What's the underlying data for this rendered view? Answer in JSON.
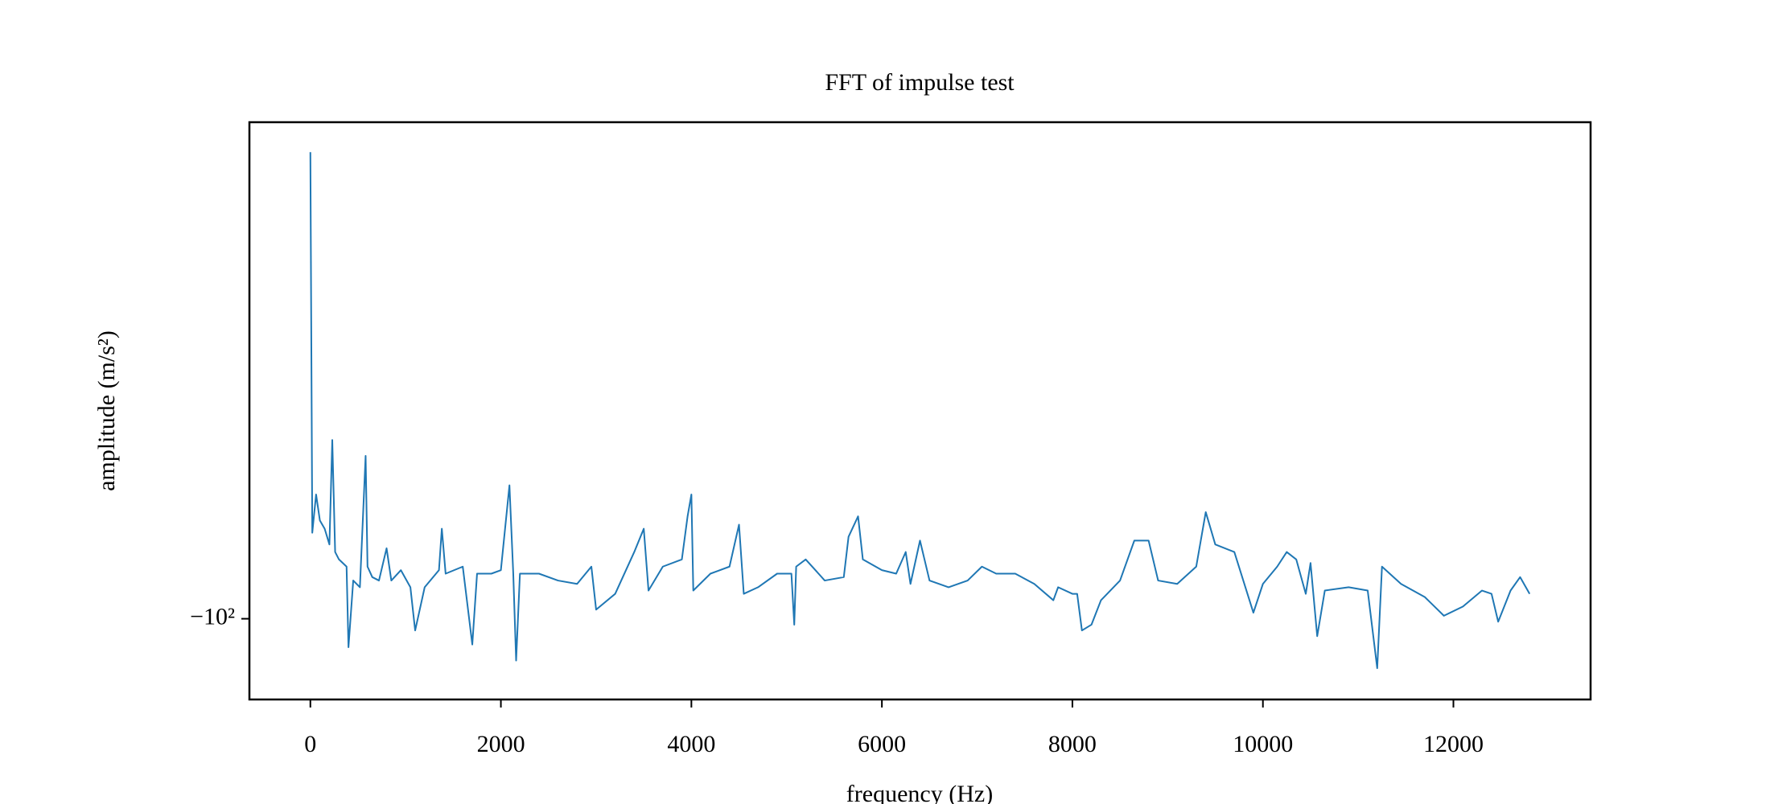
{
  "chart_data": {
    "type": "line",
    "title": "FFT of impulse test",
    "x_label": "frequency (Hz)",
    "y_label": "amplitude (m/s²)",
    "yscale": "symlog",
    "color": "#1f77b4",
    "xlim": [
      -640,
      13440
    ],
    "ylim": [
      -131,
      -19
    ],
    "xticks": [
      0,
      2000,
      4000,
      6000,
      8000,
      10000,
      12000
    ],
    "yticks": [
      {
        "value": -100,
        "label": "−10²"
      }
    ],
    "x": [
      0,
      20,
      60,
      100,
      150,
      200,
      230,
      260,
      300,
      380,
      400,
      450,
      520,
      580,
      600,
      650,
      720,
      800,
      850,
      950,
      1050,
      1100,
      1200,
      1350,
      1380,
      1420,
      1600,
      1700,
      1750,
      1900,
      2000,
      2090,
      2130,
      2160,
      2200,
      2400,
      2600,
      2800,
      2950,
      3000,
      3200,
      3400,
      3500,
      3550,
      3700,
      3900,
      3960,
      4000,
      4020,
      4200,
      4400,
      4500,
      4550,
      4700,
      4900,
      5050,
      5080,
      5100,
      5200,
      5400,
      5600,
      5650,
      5750,
      5800,
      6000,
      6150,
      6250,
      6300,
      6400,
      6500,
      6700,
      6900,
      7050,
      7200,
      7400,
      7600,
      7800,
      7850,
      8000,
      8050,
      8100,
      8200,
      8300,
      8500,
      8650,
      8800,
      8900,
      9100,
      9300,
      9400,
      9500,
      9700,
      9900,
      10000,
      10150,
      10250,
      10350,
      10450,
      10500,
      10570,
      10650,
      10900,
      11100,
      11200,
      11250,
      11450,
      11700,
      11900,
      12100,
      12300,
      12400,
      12470,
      12600,
      12700,
      12800
    ],
    "values": [
      -21,
      -75,
      -66,
      -72,
      -74,
      -78,
      -55,
      -80,
      -82,
      -84,
      -110,
      -88,
      -90,
      -58,
      -84,
      -87,
      -88,
      -79,
      -88,
      -85,
      -90,
      -104,
      -90,
      -85,
      -74,
      -86,
      -84,
      -109,
      -86,
      -86,
      -85,
      -64,
      -86,
      -115,
      -86,
      -86,
      -88,
      -89,
      -84,
      -97,
      -92,
      -80,
      -74,
      -91,
      -84,
      -82,
      -71,
      -66,
      -91,
      -86,
      -84,
      -73,
      -92,
      -90,
      -86,
      -86,
      -102,
      -84,
      -82,
      -88,
      -87,
      -76,
      -71,
      -82,
      -85,
      -86,
      -80,
      -89,
      -77,
      -88,
      -90,
      -88,
      -84,
      -86,
      -86,
      -89,
      -94,
      -90,
      -92,
      -92,
      -104,
      -102,
      -94,
      -88,
      -77,
      -77,
      -88,
      -89,
      -84,
      -70,
      -78,
      -80,
      -98,
      -89,
      -84,
      -80,
      -82,
      -92,
      -83,
      -106,
      -91,
      -90,
      -91,
      -118,
      -84,
      -89,
      -93,
      -99,
      -96,
      -91,
      -92,
      -101,
      -91,
      -87,
      -92
    ]
  }
}
